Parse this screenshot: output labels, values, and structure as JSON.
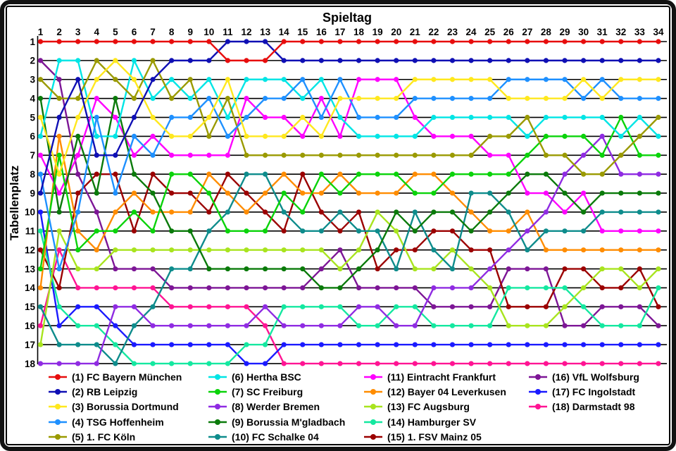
{
  "chart_data": {
    "type": "line",
    "title": "",
    "xlabel": "Spieltag",
    "ylabel": "Tabellenplatz",
    "x": [
      1,
      2,
      3,
      4,
      5,
      6,
      7,
      8,
      9,
      10,
      11,
      12,
      13,
      14,
      15,
      16,
      17,
      18,
      19,
      20,
      21,
      22,
      23,
      24,
      25,
      26,
      27,
      28,
      29,
      30,
      31,
      32,
      33,
      34
    ],
    "x_ticks": [
      1,
      2,
      3,
      4,
      5,
      6,
      7,
      8,
      9,
      10,
      11,
      12,
      13,
      14,
      15,
      16,
      17,
      18,
      19,
      20,
      21,
      22,
      23,
      24,
      25,
      26,
      27,
      28,
      29,
      30,
      31,
      32,
      33,
      34
    ],
    "y_ticks": [
      1,
      2,
      3,
      4,
      5,
      6,
      7,
      8,
      9,
      10,
      11,
      12,
      13,
      14,
      15,
      16,
      17,
      18
    ],
    "ylim": [
      1,
      18
    ],
    "y_inverted": true,
    "grid": "horizontal",
    "legend_position": "below",
    "legend_columns": [
      5,
      5,
      5,
      3
    ],
    "series": [
      {
        "name": "(1) FC Bayern München",
        "color": "#e70d0d",
        "values": [
          1,
          1,
          1,
          1,
          1,
          1,
          1,
          1,
          1,
          1,
          2,
          2,
          2,
          1,
          1,
          1,
          1,
          1,
          1,
          1,
          1,
          1,
          1,
          1,
          1,
          1,
          1,
          1,
          1,
          1,
          1,
          1,
          1,
          1
        ]
      },
      {
        "name": "(2) RB Leipzig",
        "color": "#0f0fb4",
        "values": [
          9,
          5,
          3,
          7,
          7,
          5,
          3,
          2,
          2,
          2,
          1,
          1,
          1,
          2,
          2,
          2,
          2,
          2,
          2,
          2,
          2,
          2,
          2,
          2,
          2,
          2,
          2,
          2,
          2,
          2,
          2,
          2,
          2,
          2
        ]
      },
      {
        "name": "(3) Borussia Dortmund",
        "color": "#ffe81e",
        "values": [
          5,
          8,
          5,
          3,
          2,
          3,
          5,
          6,
          6,
          5,
          3,
          6,
          6,
          6,
          5,
          6,
          4,
          4,
          4,
          4,
          3,
          3,
          3,
          3,
          3,
          4,
          4,
          4,
          4,
          3,
          4,
          3,
          3,
          3
        ]
      },
      {
        "name": "(4) TSG Hoffenheim",
        "color": "#1e90ff",
        "values": [
          8,
          13,
          10,
          5,
          9,
          6,
          7,
          5,
          5,
          4,
          6,
          5,
          4,
          4,
          3,
          5,
          3,
          5,
          5,
          5,
          4,
          4,
          4,
          4,
          4,
          3,
          3,
          3,
          3,
          4,
          3,
          4,
          4,
          4
        ]
      },
      {
        "name": "(5) 1. FC Köln",
        "color": "#9a9a00",
        "values": [
          3,
          4,
          4,
          2,
          3,
          4,
          2,
          4,
          3,
          6,
          4,
          7,
          7,
          7,
          7,
          7,
          7,
          7,
          7,
          7,
          7,
          7,
          7,
          7,
          6,
          6,
          5,
          7,
          7,
          8,
          8,
          7,
          6,
          5
        ]
      },
      {
        "name": "(6) Hertha BSC",
        "color": "#00e5e5",
        "values": [
          6,
          2,
          2,
          6,
          6,
          2,
          4,
          3,
          4,
          3,
          5,
          3,
          3,
          3,
          4,
          3,
          5,
          6,
          6,
          6,
          6,
          5,
          5,
          5,
          5,
          5,
          6,
          5,
          5,
          5,
          5,
          6,
          5,
          6
        ]
      },
      {
        "name": "(7) SC Freiburg",
        "color": "#0ad30a",
        "values": [
          13,
          7,
          12,
          11,
          11,
          10,
          11,
          8,
          8,
          9,
          11,
          11,
          11,
          9,
          10,
          8,
          9,
          8,
          8,
          8,
          9,
          9,
          8,
          8,
          8,
          8,
          7,
          6,
          6,
          6,
          7,
          5,
          7,
          7
        ]
      },
      {
        "name": "(8) Werder Bremen",
        "color": "#8f2be2",
        "values": [
          18,
          18,
          18,
          18,
          15,
          15,
          16,
          16,
          16,
          16,
          16,
          16,
          15,
          16,
          16,
          16,
          16,
          15,
          15,
          16,
          16,
          14,
          14,
          14,
          13,
          12,
          11,
          10,
          8,
          7,
          6,
          8,
          8,
          8
        ]
      },
      {
        "name": "(9) Borussia M'gladbach",
        "color": "#0a7a0a",
        "values": [
          4,
          10,
          6,
          9,
          4,
          8,
          9,
          11,
          11,
          13,
          13,
          13,
          13,
          13,
          13,
          14,
          14,
          13,
          12,
          10,
          11,
          10,
          10,
          11,
          10,
          9,
          8,
          8,
          9,
          10,
          9,
          9,
          9,
          9
        ]
      },
      {
        "name": "(10) FC Schalke 04",
        "color": "#0e8c8c",
        "values": [
          15,
          17,
          17,
          17,
          18,
          16,
          15,
          13,
          13,
          11,
          10,
          8,
          8,
          10,
          11,
          11,
          10,
          11,
          11,
          13,
          10,
          12,
          13,
          9,
          9,
          10,
          12,
          11,
          11,
          11,
          10,
          10,
          10,
          10
        ]
      },
      {
        "name": "(11) Eintracht Frankfurt",
        "color": "#ff00ff",
        "values": [
          7,
          9,
          7,
          4,
          5,
          7,
          6,
          7,
          7,
          7,
          7,
          4,
          5,
          5,
          6,
          4,
          6,
          3,
          3,
          3,
          5,
          6,
          6,
          6,
          7,
          7,
          9,
          9,
          10,
          9,
          11,
          11,
          11,
          11
        ]
      },
      {
        "name": "(12) Bayer 04 Leverkusen",
        "color": "#ff8c00",
        "values": [
          14,
          6,
          11,
          12,
          10,
          9,
          10,
          10,
          10,
          8,
          9,
          10,
          9,
          8,
          9,
          9,
          8,
          9,
          9,
          9,
          8,
          8,
          9,
          10,
          11,
          11,
          10,
          12,
          12,
          12,
          12,
          12,
          12,
          12
        ]
      },
      {
        "name": "(13) FC Augsburg",
        "color": "#a8e41e",
        "values": [
          17,
          11,
          13,
          13,
          12,
          12,
          12,
          12,
          12,
          12,
          12,
          12,
          12,
          12,
          12,
          12,
          13,
          12,
          10,
          11,
          13,
          13,
          12,
          13,
          14,
          16,
          16,
          16,
          15,
          14,
          13,
          13,
          14,
          13
        ]
      },
      {
        "name": "(14) Hamburger SV",
        "color": "#14e8a0",
        "values": [
          11,
          15,
          16,
          16,
          17,
          18,
          18,
          18,
          18,
          18,
          18,
          17,
          17,
          15,
          15,
          15,
          15,
          16,
          16,
          15,
          15,
          16,
          16,
          16,
          16,
          14,
          14,
          14,
          14,
          15,
          16,
          16,
          16,
          14
        ]
      },
      {
        "name": "(15) 1. FSV Mainz 05",
        "color": "#9b0000",
        "values": [
          12,
          14,
          9,
          8,
          8,
          11,
          8,
          9,
          9,
          10,
          8,
          9,
          10,
          11,
          8,
          10,
          11,
          10,
          13,
          12,
          12,
          11,
          11,
          12,
          12,
          15,
          15,
          15,
          13,
          13,
          14,
          14,
          13,
          15
        ]
      },
      {
        "name": "(16) VfL Wolfsburg",
        "color": "#7d1696",
        "values": [
          2,
          3,
          8,
          10,
          13,
          13,
          13,
          14,
          14,
          14,
          14,
          14,
          14,
          14,
          14,
          13,
          12,
          14,
          14,
          14,
          14,
          15,
          15,
          15,
          15,
          13,
          13,
          13,
          16,
          16,
          15,
          15,
          15,
          16
        ]
      },
      {
        "name": "(17) FC Ingolstadt",
        "color": "#1a1aff",
        "values": [
          10,
          16,
          15,
          15,
          16,
          17,
          17,
          17,
          17,
          17,
          17,
          18,
          18,
          17,
          17,
          17,
          17,
          17,
          17,
          17,
          17,
          17,
          17,
          17,
          17,
          17,
          17,
          17,
          17,
          17,
          17,
          17,
          17,
          17
        ]
      },
      {
        "name": "(18) Darmstadt 98",
        "color": "#ff1493",
        "values": [
          16,
          12,
          14,
          14,
          14,
          14,
          14,
          15,
          15,
          15,
          15,
          15,
          16,
          18,
          18,
          18,
          18,
          18,
          18,
          18,
          18,
          18,
          18,
          18,
          18,
          18,
          18,
          18,
          18,
          18,
          18,
          18,
          18,
          18
        ]
      }
    ]
  }
}
